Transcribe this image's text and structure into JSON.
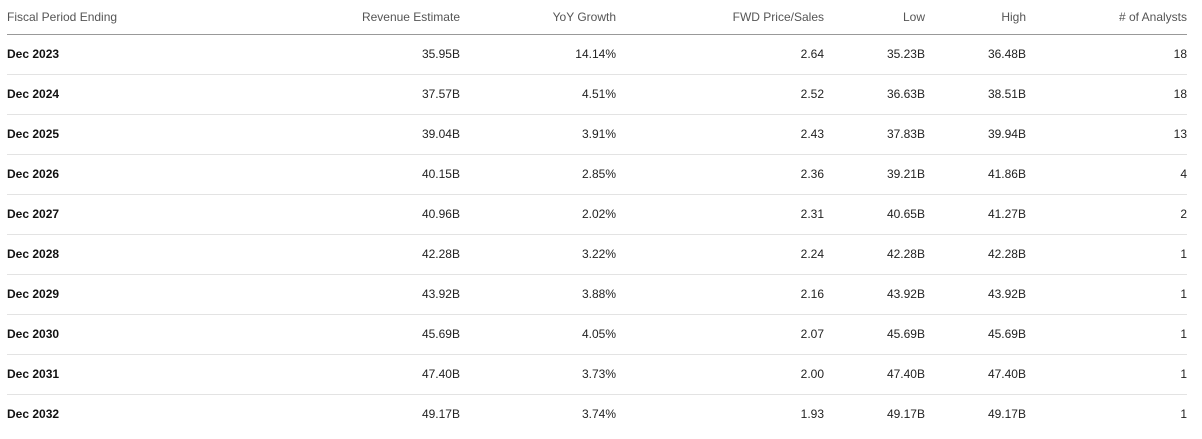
{
  "table": {
    "headers": {
      "period": "Fiscal Period Ending",
      "revenue_estimate": "Revenue Estimate",
      "yoy_growth": "YoY Growth",
      "fwd_price_sales": "FWD Price/Sales",
      "low": "Low",
      "high": "High",
      "analysts": "# of Analysts"
    },
    "rows": [
      {
        "period": "Dec 2023",
        "revenue_estimate": "35.95B",
        "yoy_growth": "14.14%",
        "fwd_price_sales": "2.64",
        "low": "35.23B",
        "high": "36.48B",
        "analysts": "18"
      },
      {
        "period": "Dec 2024",
        "revenue_estimate": "37.57B",
        "yoy_growth": "4.51%",
        "fwd_price_sales": "2.52",
        "low": "36.63B",
        "high": "38.51B",
        "analysts": "18"
      },
      {
        "period": "Dec 2025",
        "revenue_estimate": "39.04B",
        "yoy_growth": "3.91%",
        "fwd_price_sales": "2.43",
        "low": "37.83B",
        "high": "39.94B",
        "analysts": "13"
      },
      {
        "period": "Dec 2026",
        "revenue_estimate": "40.15B",
        "yoy_growth": "2.85%",
        "fwd_price_sales": "2.36",
        "low": "39.21B",
        "high": "41.86B",
        "analysts": "4"
      },
      {
        "period": "Dec 2027",
        "revenue_estimate": "40.96B",
        "yoy_growth": "2.02%",
        "fwd_price_sales": "2.31",
        "low": "40.65B",
        "high": "41.27B",
        "analysts": "2"
      },
      {
        "period": "Dec 2028",
        "revenue_estimate": "42.28B",
        "yoy_growth": "3.22%",
        "fwd_price_sales": "2.24",
        "low": "42.28B",
        "high": "42.28B",
        "analysts": "1"
      },
      {
        "period": "Dec 2029",
        "revenue_estimate": "43.92B",
        "yoy_growth": "3.88%",
        "fwd_price_sales": "2.16",
        "low": "43.92B",
        "high": "43.92B",
        "analysts": "1"
      },
      {
        "period": "Dec 2030",
        "revenue_estimate": "45.69B",
        "yoy_growth": "4.05%",
        "fwd_price_sales": "2.07",
        "low": "45.69B",
        "high": "45.69B",
        "analysts": "1"
      },
      {
        "period": "Dec 2031",
        "revenue_estimate": "47.40B",
        "yoy_growth": "3.73%",
        "fwd_price_sales": "2.00",
        "low": "47.40B",
        "high": "47.40B",
        "analysts": "1"
      },
      {
        "period": "Dec 2032",
        "revenue_estimate": "49.17B",
        "yoy_growth": "3.74%",
        "fwd_price_sales": "1.93",
        "low": "49.17B",
        "high": "49.17B",
        "analysts": "1"
      }
    ]
  }
}
